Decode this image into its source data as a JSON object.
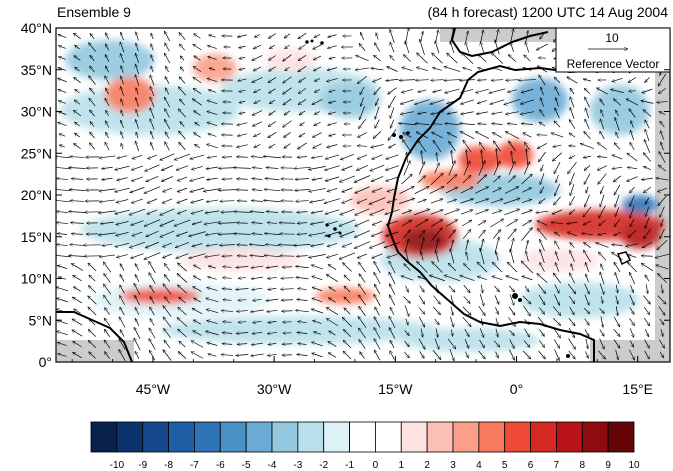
{
  "header": {
    "left_title": "Ensemble 9",
    "right_title": "(84 h forecast) 1200 UTC 14 Aug 2004"
  },
  "reference_vector": {
    "value": "10",
    "label": "Reference Vector"
  },
  "axes": {
    "y_ticks": [
      "0°",
      "5°N",
      "10°N",
      "15°N",
      "20°N",
      "25°N",
      "30°N",
      "35°N",
      "40°N"
    ],
    "x_ticks": [
      "45°W",
      "30°W",
      "15°W",
      "0°",
      "15°E"
    ]
  },
  "colorbar": {
    "labels": [
      "-10",
      "-9",
      "-8",
      "-7",
      "-6",
      "-5",
      "-4",
      "-3",
      "-2",
      "-1",
      "0",
      "1",
      "2",
      "3",
      "4",
      "5",
      "6",
      "7",
      "8",
      "9",
      "10"
    ],
    "colors": [
      "#08224d",
      "#0b336d",
      "#16488b",
      "#1f5fa5",
      "#2e73b6",
      "#4a91c6",
      "#6aaad4",
      "#93c8de",
      "#b9e0ea",
      "#dff3f7",
      "#ffffff",
      "#ffffff",
      "#fde2e2",
      "#fcc0b6",
      "#fb9f8a",
      "#f77a5d",
      "#ee4a36",
      "#d52a24",
      "#b81417",
      "#8e0b10",
      "#650507"
    ]
  },
  "map": {
    "lat_range": [
      0,
      40
    ],
    "lon_range": [
      -57,
      19
    ],
    "land_mask_color": "#cccccc",
    "coastline_color": "#000000"
  }
}
